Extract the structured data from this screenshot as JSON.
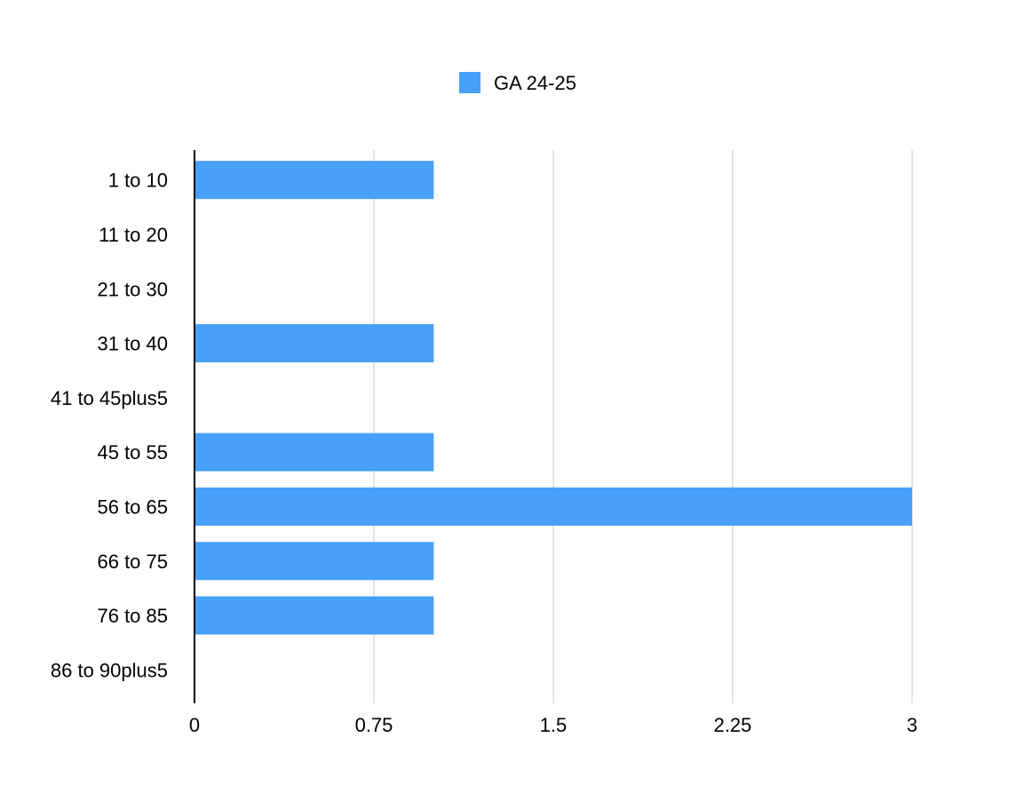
{
  "chart_data": {
    "type": "bar",
    "orientation": "horizontal",
    "title": "",
    "xlabel": "",
    "ylabel": "",
    "categories": [
      "1 to 10",
      "11 to 20",
      "21 to 30",
      "31 to 40",
      "41 to 45plus5",
      "45 to 55",
      "56 to 65",
      "66 to 75",
      "76 to 85",
      "86 to 90plus5"
    ],
    "series": [
      {
        "name": "GA 24-25",
        "color": "#48a0f8",
        "values": [
          1,
          0,
          0,
          1,
          0,
          1,
          3,
          1,
          1,
          0
        ]
      }
    ],
    "xlim": [
      0,
      3
    ],
    "xticks": [
      "0",
      "0.75",
      "1.5",
      "2.25",
      "3"
    ],
    "grid": true,
    "legend_position": "top"
  }
}
